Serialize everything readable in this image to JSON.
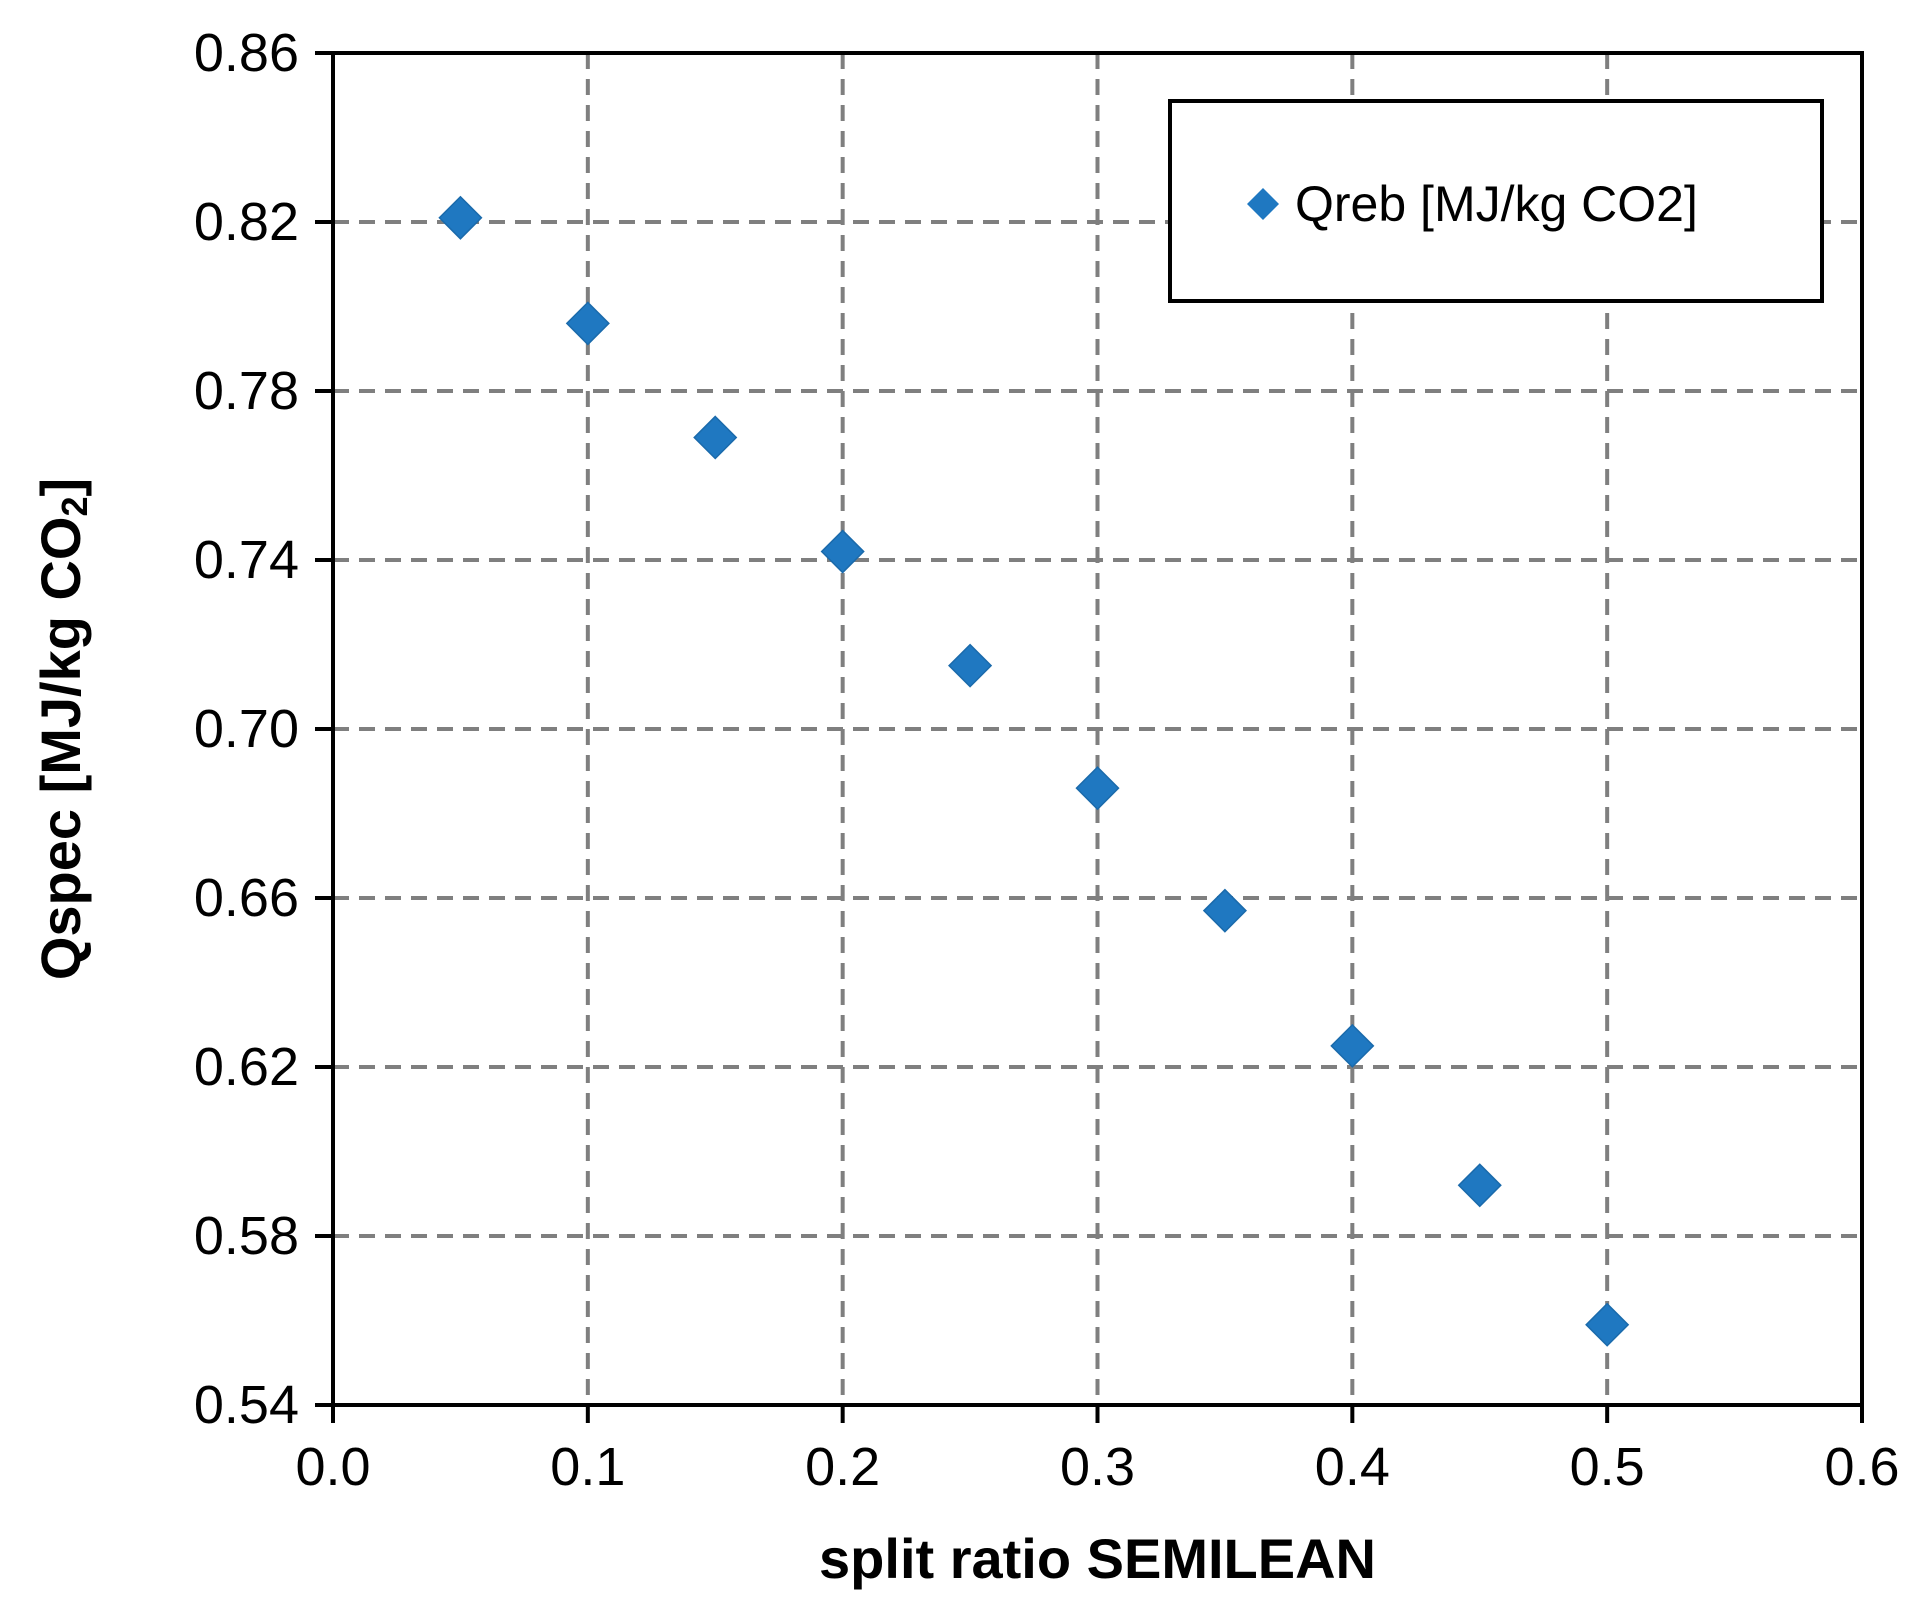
{
  "chart_data": {
    "type": "scatter",
    "title": "",
    "xlabel": "split ratio SEMILEAN",
    "ylabel": {
      "main": "Qspec [MJ/kg CO",
      "subscript": "2",
      "suffix": "]"
    },
    "xlim": [
      0.0,
      0.6
    ],
    "ylim": [
      0.54,
      0.86
    ],
    "xticks": [
      0.0,
      0.1,
      0.2,
      0.3,
      0.4,
      0.5,
      0.6
    ],
    "xtick_labels": [
      "0.0",
      "0.1",
      "0.2",
      "0.3",
      "0.4",
      "0.5",
      "0.6"
    ],
    "yticks": [
      0.54,
      0.58,
      0.62,
      0.66,
      0.7,
      0.74,
      0.78,
      0.82,
      0.86
    ],
    "ytick_labels": [
      "0.54",
      "0.58",
      "0.62",
      "0.66",
      "0.70",
      "0.74",
      "0.78",
      "0.82",
      "0.86"
    ],
    "grid": true,
    "legend_position": "top-right",
    "series": [
      {
        "name": "Qreb [MJ/kg CO2]",
        "color": "#1f78c1",
        "marker": "diamond",
        "x": [
          0.05,
          0.1,
          0.15,
          0.2,
          0.25,
          0.3,
          0.35,
          0.4,
          0.45,
          0.5
        ],
        "y": [
          0.821,
          0.796,
          0.769,
          0.742,
          0.715,
          0.686,
          0.657,
          0.625,
          0.592,
          0.559
        ]
      }
    ]
  }
}
